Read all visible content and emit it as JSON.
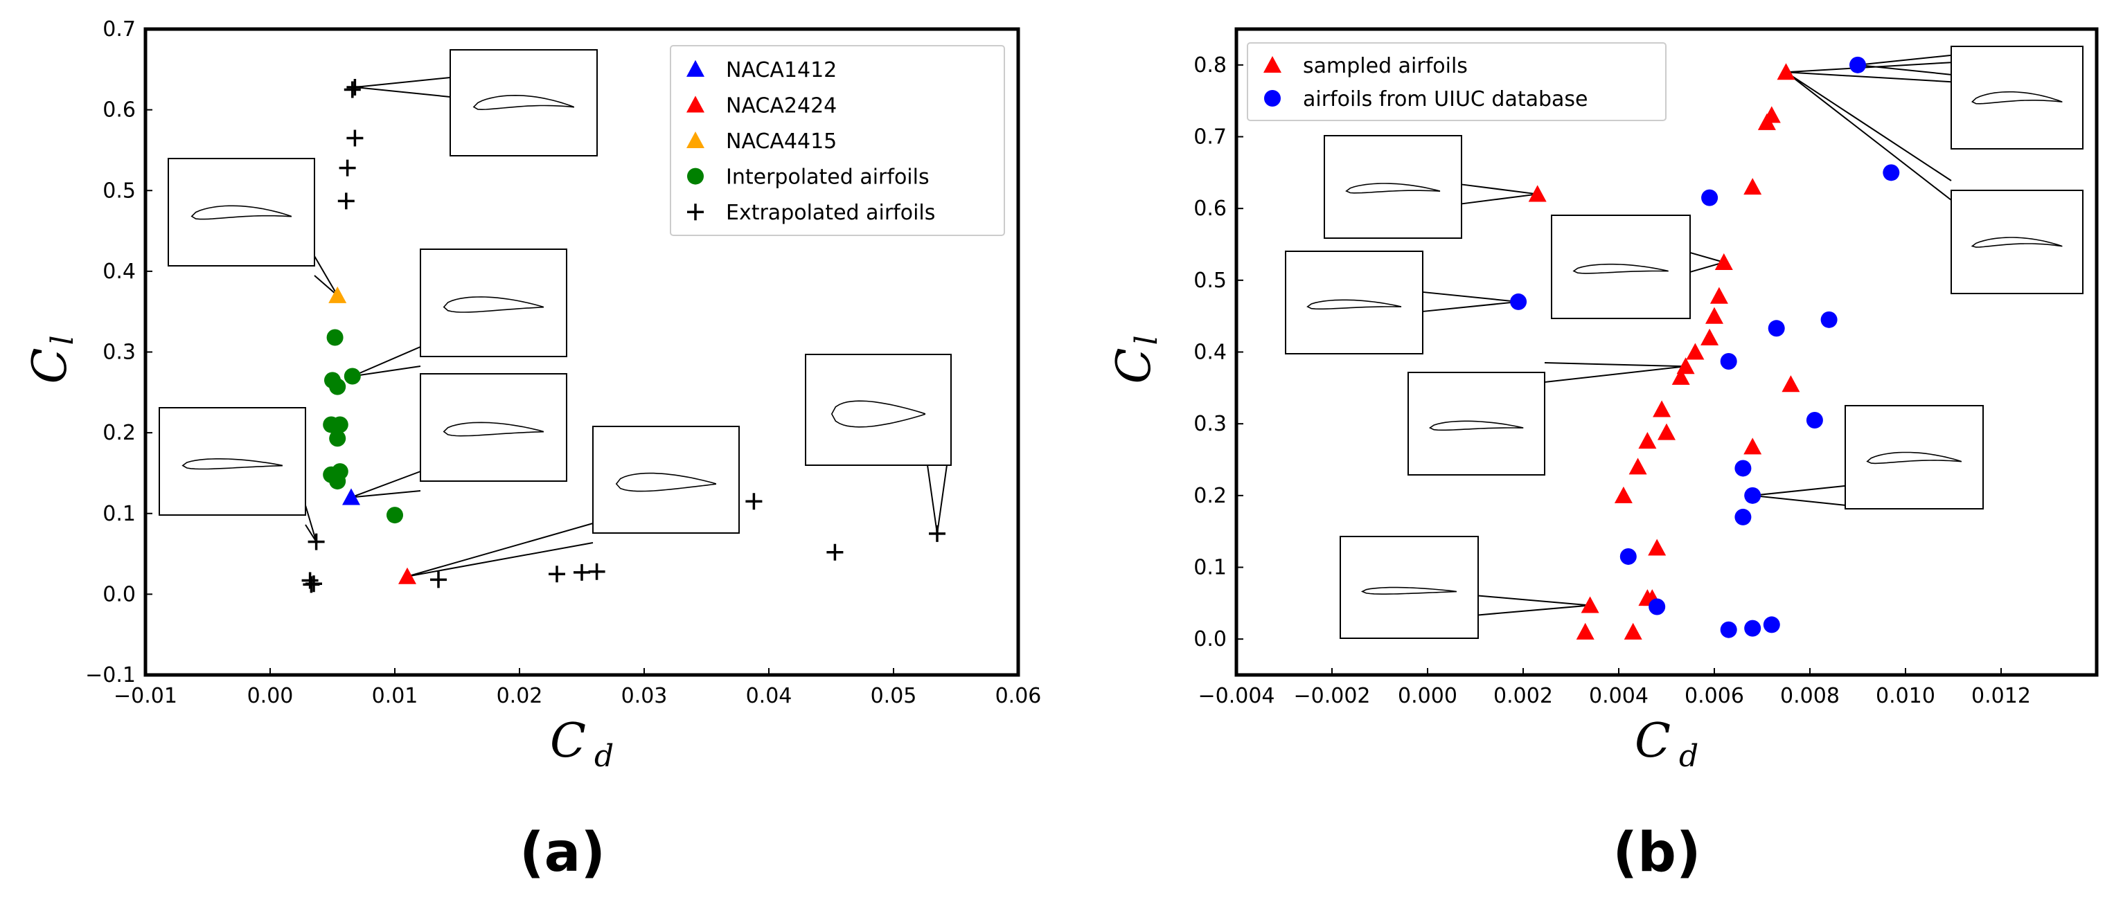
{
  "chart_data": [
    {
      "panel": "(a)",
      "type": "scatter",
      "xlabel": "C",
      "xlabel_sub": "d",
      "ylabel": "C",
      "ylabel_sub": "l",
      "xlim": [
        -0.01,
        0.06
      ],
      "ylim": [
        -0.1,
        0.7
      ],
      "xticks": [
        "−0.01",
        "0.00",
        "0.01",
        "0.02",
        "0.03",
        "0.04",
        "0.05",
        "0.06"
      ],
      "xtick_values": [
        -0.01,
        0.0,
        0.01,
        0.02,
        0.03,
        0.04,
        0.05,
        0.06
      ],
      "yticks": [
        "−0.1",
        "0.0",
        "0.1",
        "0.2",
        "0.3",
        "0.4",
        "0.5",
        "0.6",
        "0.7"
      ],
      "ytick_values": [
        -0.1,
        0.0,
        0.1,
        0.2,
        0.3,
        0.4,
        0.5,
        0.6,
        0.7
      ],
      "grid": false,
      "legend_position": "top-right",
      "series": [
        {
          "name": "NACA1412",
          "marker": "triangle",
          "color": "#0000ff",
          "points": [
            [
              0.0065,
              0.12
            ]
          ]
        },
        {
          "name": "NACA2424",
          "marker": "triangle",
          "color": "#ff0000",
          "points": [
            [
              0.011,
              0.022
            ]
          ]
        },
        {
          "name": "NACA4415",
          "marker": "triangle",
          "color": "#ffa500",
          "points": [
            [
              0.0054,
              0.37
            ]
          ]
        },
        {
          "name": "Interpolated airfoils",
          "marker": "circle",
          "color": "#008000",
          "points": [
            [
              0.0052,
              0.318
            ],
            [
              0.0066,
              0.27
            ],
            [
              0.005,
              0.265
            ],
            [
              0.0054,
              0.257
            ],
            [
              0.0049,
              0.21
            ],
            [
              0.0056,
              0.21
            ],
            [
              0.0054,
              0.193
            ],
            [
              0.0049,
              0.148
            ],
            [
              0.0056,
              0.152
            ],
            [
              0.0054,
              0.14
            ],
            [
              0.01,
              0.098
            ]
          ]
        },
        {
          "name": "Extrapolated airfoils",
          "marker": "plus",
          "color": "#000000",
          "points": [
            [
              0.0068,
              0.628
            ],
            [
              0.0066,
              0.625
            ],
            [
              0.0068,
              0.565
            ],
            [
              0.0062,
              0.528
            ],
            [
              0.0061,
              0.487
            ],
            [
              0.0037,
              0.065
            ],
            [
              0.0032,
              0.017
            ],
            [
              0.0035,
              0.013
            ],
            [
              0.0033,
              0.012
            ],
            [
              0.0135,
              0.018
            ],
            [
              0.023,
              0.025
            ],
            [
              0.025,
              0.027
            ],
            [
              0.0262,
              0.028
            ],
            [
              0.0388,
              0.115
            ],
            [
              0.0453,
              0.052
            ],
            [
              0.0535,
              0.075
            ]
          ]
        }
      ],
      "callouts": [
        {
          "anchor": [
            0.0068,
            0.628
          ],
          "box": "a1"
        },
        {
          "anchor": [
            0.0054,
            0.37
          ],
          "box": "a2"
        },
        {
          "anchor": [
            0.0066,
            0.27
          ],
          "box": "a3"
        },
        {
          "anchor": [
            0.0065,
            0.12
          ],
          "box": "a4"
        },
        {
          "anchor": [
            0.0037,
            0.065
          ],
          "box": "a5"
        },
        {
          "anchor": [
            0.011,
            0.022
          ],
          "box": "a6"
        },
        {
          "anchor": [
            0.0535,
            0.075
          ],
          "box": "a7"
        }
      ]
    },
    {
      "panel": "(b)",
      "type": "scatter",
      "xlabel": "C",
      "xlabel_sub": "d",
      "ylabel": "C",
      "ylabel_sub": "l",
      "xlim": [
        -0.004,
        0.014
      ],
      "ylim": [
        -0.05,
        0.85
      ],
      "xticks": [
        "−0.004",
        "−0.002",
        "0.000",
        "0.002",
        "0.004",
        "0.006",
        "0.008",
        "0.010",
        "0.012"
      ],
      "xtick_values": [
        -0.004,
        -0.002,
        0.0,
        0.002,
        0.004,
        0.006,
        0.008,
        0.01,
        0.012
      ],
      "yticks": [
        "0.0",
        "0.1",
        "0.2",
        "0.3",
        "0.4",
        "0.5",
        "0.6",
        "0.7",
        "0.8"
      ],
      "ytick_values": [
        0.0,
        0.1,
        0.2,
        0.3,
        0.4,
        0.5,
        0.6,
        0.7,
        0.8
      ],
      "grid": false,
      "legend_position": "top-left",
      "series": [
        {
          "name": "sampled airfoils",
          "marker": "triangle",
          "color": "#ff0000",
          "points": [
            [
              0.0023,
              0.62
            ],
            [
              0.0075,
              0.79
            ],
            [
              0.0072,
              0.73
            ],
            [
              0.0071,
              0.72
            ],
            [
              0.0068,
              0.63
            ],
            [
              0.0062,
              0.525
            ],
            [
              0.0061,
              0.478
            ],
            [
              0.006,
              0.45
            ],
            [
              0.0059,
              0.42
            ],
            [
              0.0056,
              0.4
            ],
            [
              0.0054,
              0.38
            ],
            [
              0.0053,
              0.365
            ],
            [
              0.0049,
              0.32
            ],
            [
              0.005,
              0.288
            ],
            [
              0.0046,
              0.276
            ],
            [
              0.0044,
              0.24
            ],
            [
              0.0041,
              0.2
            ],
            [
              0.0076,
              0.355
            ],
            [
              0.0068,
              0.268
            ],
            [
              0.0048,
              0.127
            ],
            [
              0.0046,
              0.057
            ],
            [
              0.0047,
              0.057
            ],
            [
              0.0034,
              0.047
            ],
            [
              0.0033,
              0.01
            ],
            [
              0.0043,
              0.01
            ]
          ]
        },
        {
          "name": "airfoils from UIUC database",
          "marker": "circle",
          "color": "#0000ff",
          "points": [
            [
              0.009,
              0.8
            ],
            [
              0.0097,
              0.65
            ],
            [
              0.0059,
              0.615
            ],
            [
              0.0019,
              0.47
            ],
            [
              0.0084,
              0.445
            ],
            [
              0.0073,
              0.433
            ],
            [
              0.0063,
              0.387
            ],
            [
              0.0081,
              0.305
            ],
            [
              0.0066,
              0.238
            ],
            [
              0.0068,
              0.2
            ],
            [
              0.0066,
              0.17
            ],
            [
              0.0042,
              0.115
            ],
            [
              0.0048,
              0.045
            ],
            [
              0.0063,
              0.013
            ],
            [
              0.0068,
              0.015
            ],
            [
              0.0072,
              0.02
            ]
          ]
        }
      ],
      "callouts": [
        {
          "anchor": [
            0.009,
            0.8
          ],
          "box": "b1"
        },
        {
          "anchor": [
            0.0075,
            0.79
          ],
          "box": "b1"
        },
        {
          "anchor": [
            0.0075,
            0.79
          ],
          "box": "b2"
        },
        {
          "anchor": [
            0.0023,
            0.62
          ],
          "box": "b3"
        },
        {
          "anchor": [
            0.0062,
            0.525
          ],
          "box": "b4"
        },
        {
          "anchor": [
            0.0019,
            0.47
          ],
          "box": "b5"
        },
        {
          "anchor": [
            0.0054,
            0.38
          ],
          "box": "b6"
        },
        {
          "anchor": [
            0.0068,
            0.2
          ],
          "box": "b7"
        },
        {
          "anchor": [
            0.0034,
            0.047
          ],
          "box": "b8"
        }
      ]
    }
  ],
  "labels": {
    "panel_a": "(a)",
    "panel_b": "(b)"
  }
}
